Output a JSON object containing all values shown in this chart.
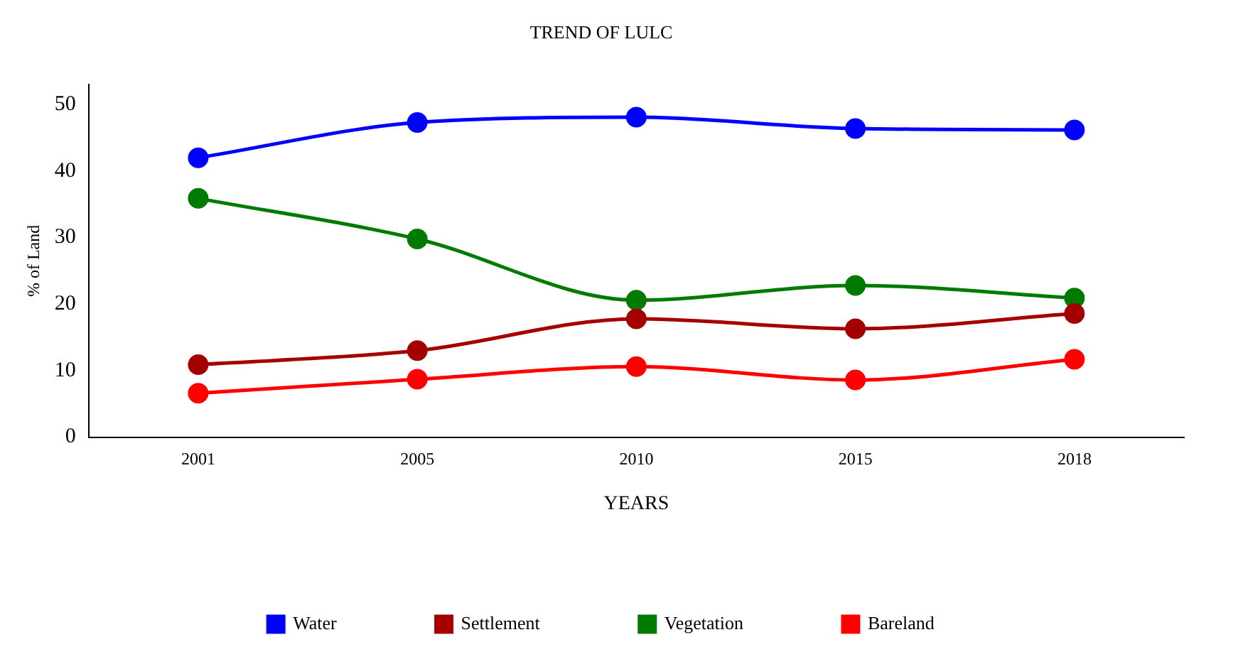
{
  "chart_data": {
    "type": "line",
    "title": "TREND OF LULC",
    "xlabel": "YEARS",
    "ylabel": "% of Land",
    "categories": [
      "2001",
      "2005",
      "2010",
      "2015",
      "2018"
    ],
    "series": [
      {
        "name": "Water",
        "color": "#0000ff",
        "values": [
          42.0,
          47.3,
          48.1,
          46.4,
          46.2
        ]
      },
      {
        "name": "Settlement",
        "color": "#a50000",
        "values": [
          10.9,
          13.0,
          17.8,
          16.3,
          18.6
        ]
      },
      {
        "name": "Vegetation",
        "color": "#007a00",
        "values": [
          35.9,
          29.8,
          20.6,
          22.8,
          20.9
        ]
      },
      {
        "name": "Bareland",
        "color": "#ff0000",
        "values": [
          6.6,
          8.7,
          10.6,
          8.6,
          11.7
        ]
      }
    ],
    "ylim": [
      0,
      53
    ],
    "yticks": [
      0,
      10,
      20,
      30,
      40,
      50
    ],
    "grid": false,
    "legend": "bottom",
    "marker": "circle",
    "line_style": "solid"
  }
}
